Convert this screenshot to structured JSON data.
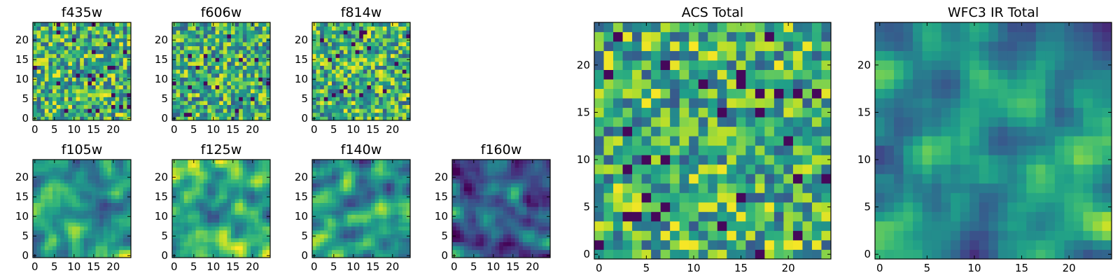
{
  "chart_data": [
    {
      "type": "heatmap",
      "title": "f435w",
      "xticks": [
        "0",
        "5",
        "10",
        "15",
        "20"
      ],
      "yticks": [
        "0",
        "5",
        "10",
        "15",
        "20"
      ],
      "xlim": [
        0,
        24
      ],
      "ylim": [
        0,
        24
      ],
      "grid": false,
      "colormap": "viridis",
      "texture": "noise",
      "level": 0.62
    },
    {
      "type": "heatmap",
      "title": "f606w",
      "xticks": [
        "0",
        "5",
        "10",
        "15",
        "20"
      ],
      "yticks": [
        "0",
        "5",
        "10",
        "15",
        "20"
      ],
      "xlim": [
        0,
        24
      ],
      "ylim": [
        0,
        24
      ],
      "grid": false,
      "colormap": "viridis",
      "texture": "noise",
      "level": 0.6
    },
    {
      "type": "heatmap",
      "title": "f814w",
      "xticks": [
        "0",
        "5",
        "10",
        "15",
        "20"
      ],
      "yticks": [
        "0",
        "5",
        "10",
        "15",
        "20"
      ],
      "xlim": [
        0,
        24
      ],
      "ylim": [
        0,
        24
      ],
      "grid": false,
      "colormap": "viridis",
      "texture": "noise",
      "level": 0.62
    },
    {
      "type": "heatmap",
      "title": "f105w",
      "xticks": [
        "0",
        "5",
        "10",
        "15",
        "20"
      ],
      "yticks": [
        "0",
        "5",
        "10",
        "15",
        "20"
      ],
      "xlim": [
        0,
        24
      ],
      "ylim": [
        0,
        24
      ],
      "grid": false,
      "colormap": "viridis",
      "texture": "smooth",
      "level": 0.6
    },
    {
      "type": "heatmap",
      "title": "f125w",
      "xticks": [
        "0",
        "5",
        "10",
        "15",
        "20"
      ],
      "yticks": [
        "0",
        "5",
        "10",
        "15",
        "20"
      ],
      "xlim": [
        0,
        24
      ],
      "ylim": [
        0,
        24
      ],
      "grid": false,
      "colormap": "viridis",
      "texture": "smooth",
      "level": 0.62
    },
    {
      "type": "heatmap",
      "title": "f140w",
      "xticks": [
        "0",
        "5",
        "10",
        "15",
        "20"
      ],
      "yticks": [
        "0",
        "5",
        "10",
        "15",
        "20"
      ],
      "xlim": [
        0,
        24
      ],
      "ylim": [
        0,
        24
      ],
      "grid": false,
      "colormap": "viridis",
      "texture": "smooth",
      "level": 0.5
    },
    {
      "type": "heatmap",
      "title": "f160w",
      "xticks": [
        "0",
        "5",
        "10",
        "15",
        "20"
      ],
      "yticks": [
        "0",
        "5",
        "10",
        "15",
        "20"
      ],
      "xlim": [
        0,
        24
      ],
      "ylim": [
        0,
        24
      ],
      "grid": false,
      "colormap": "viridis",
      "texture": "smooth",
      "level": 0.36
    },
    {
      "type": "heatmap",
      "title": "ACS Total",
      "xticks": [
        "0",
        "5",
        "10",
        "15",
        "20"
      ],
      "yticks": [
        "0",
        "5",
        "10",
        "15",
        "20"
      ],
      "xlim": [
        0,
        24
      ],
      "ylim": [
        0,
        24
      ],
      "grid": false,
      "colormap": "viridis",
      "texture": "noise",
      "level": 0.62
    },
    {
      "type": "heatmap",
      "title": "WFC3 IR Total",
      "xticks": [
        "0",
        "5",
        "10",
        "15",
        "20"
      ],
      "yticks": [
        "0",
        "5",
        "10",
        "15",
        "20"
      ],
      "xlim": [
        0,
        24
      ],
      "ylim": [
        0,
        24
      ],
      "grid": false,
      "colormap": "viridis",
      "texture": "smooth",
      "level": 0.52
    }
  ]
}
